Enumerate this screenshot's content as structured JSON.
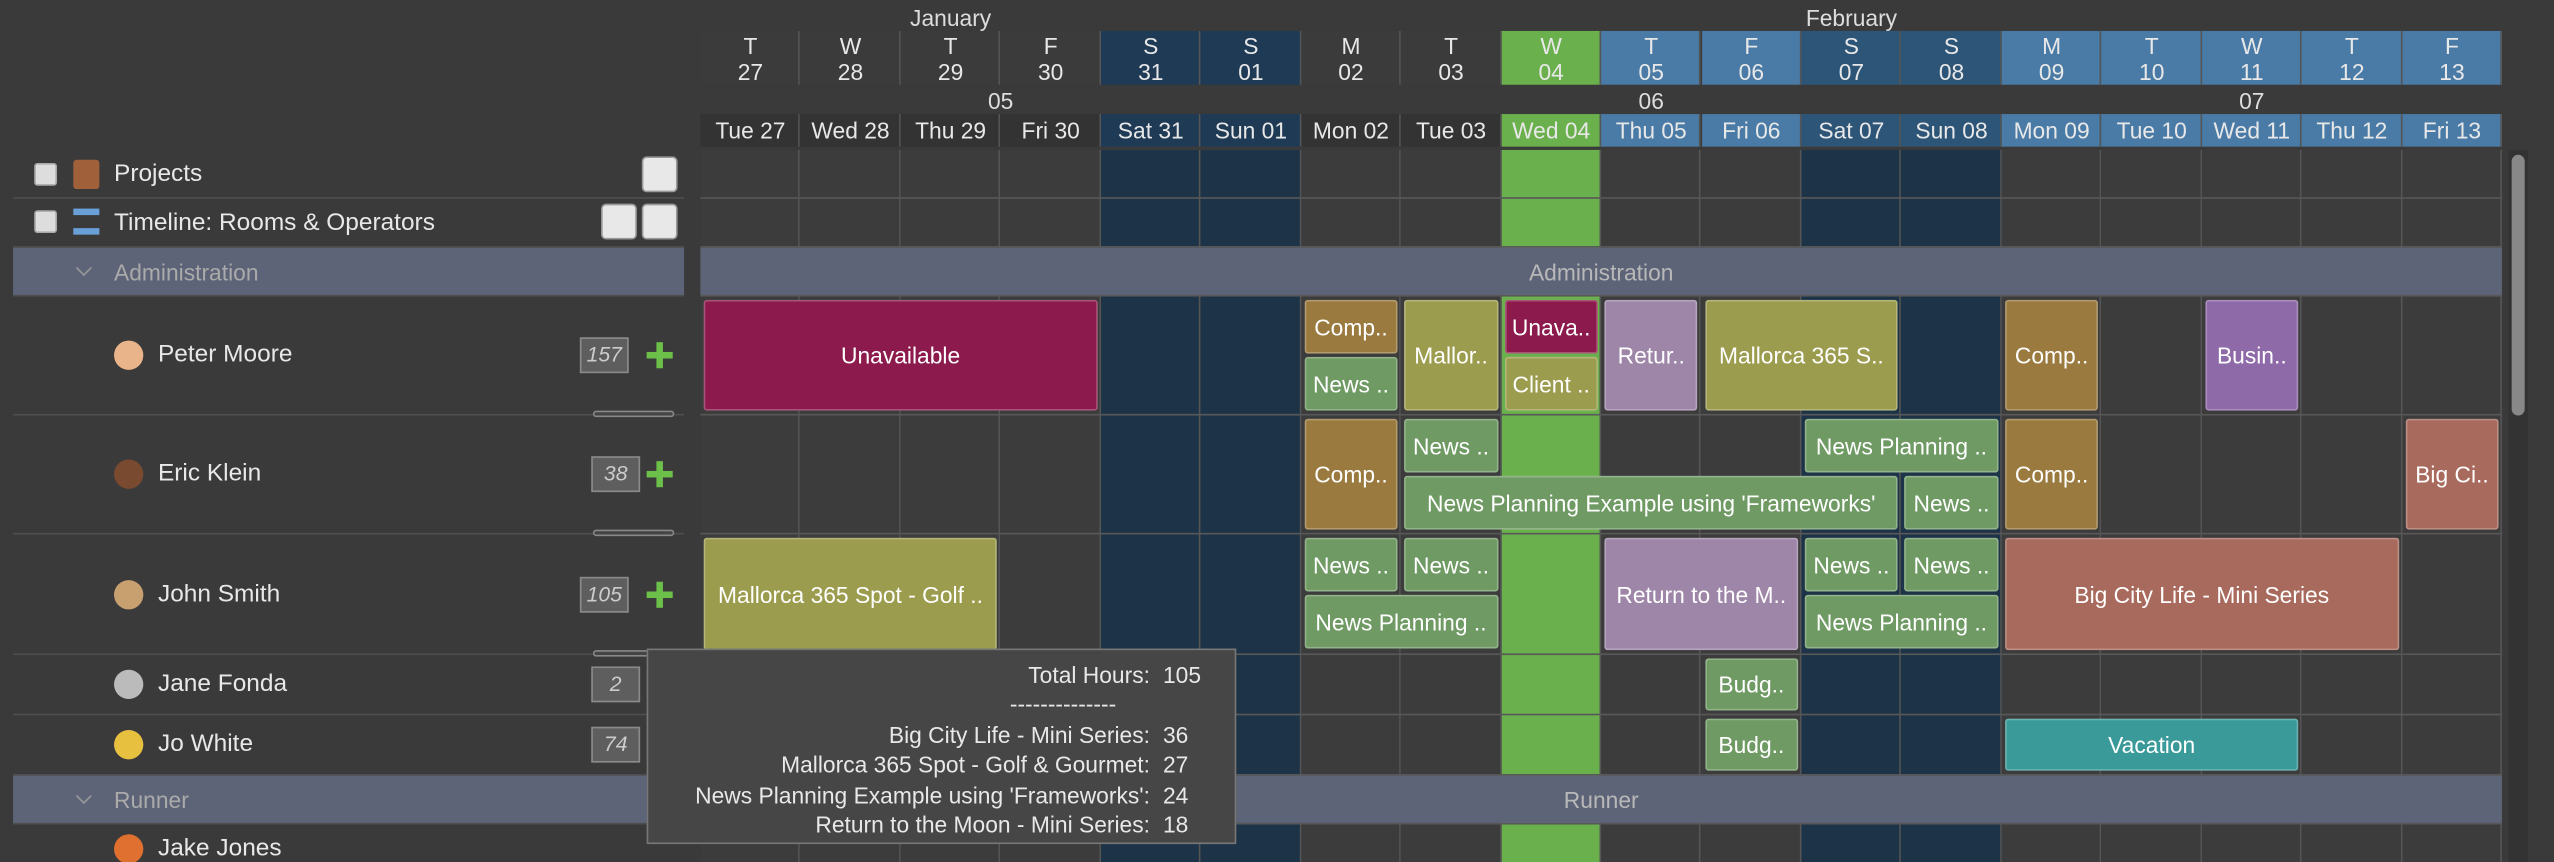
{
  "calendar": {
    "months": [
      "January",
      "February"
    ],
    "days": [
      {
        "letter": "T",
        "number": "27",
        "label": "Tue 27"
      },
      {
        "letter": "W",
        "number": "28",
        "label": "Wed 28"
      },
      {
        "letter": "T",
        "number": "29",
        "label": "Thu 29"
      },
      {
        "letter": "F",
        "number": "30",
        "label": "Fri 30"
      },
      {
        "letter": "S",
        "number": "31",
        "label": "Sat 31"
      },
      {
        "letter": "S",
        "number": "01",
        "label": "Sun 01"
      },
      {
        "letter": "M",
        "number": "02",
        "label": "Mon 02"
      },
      {
        "letter": "T",
        "number": "03",
        "label": "Tue 03"
      },
      {
        "letter": "W",
        "number": "04",
        "label": "Wed 04"
      },
      {
        "letter": "T",
        "number": "05",
        "label": "Thu 05"
      },
      {
        "letter": "F",
        "number": "06",
        "label": "Fri 06"
      },
      {
        "letter": "S",
        "number": "07",
        "label": "Sat 07"
      },
      {
        "letter": "S",
        "number": "08",
        "label": "Sun 08"
      },
      {
        "letter": "M",
        "number": "09",
        "label": "Mon 09"
      },
      {
        "letter": "T",
        "number": "10",
        "label": "Tue 10"
      },
      {
        "letter": "W",
        "number": "11",
        "label": "Wed 11"
      },
      {
        "letter": "T",
        "number": "12",
        "label": "Thu 12"
      },
      {
        "letter": "F",
        "number": "13",
        "label": "Fri 13"
      }
    ],
    "weeks": [
      "05",
      "06",
      "07"
    ]
  },
  "sidebar": {
    "projects": "Projects",
    "timeline": "Timeline: Rooms & Operators"
  },
  "groups": [
    {
      "name": "Administration"
    },
    {
      "name": "Runner"
    }
  ],
  "resources": [
    {
      "name": "Peter Moore",
      "hours": 157,
      "events": [
        "Unavailable",
        "Comp..",
        "News ..",
        "Mallor..",
        "Unava..",
        "Client ..",
        "Retur..",
        "Mallorca 365 S..",
        "Comp..",
        "Busin.."
      ]
    },
    {
      "name": "Eric Klein",
      "hours": 38,
      "events": [
        "Comp..",
        "News ..",
        "News Planning Example using 'Frameworks'",
        "News Planning ..",
        "News ..",
        "Comp..",
        "Big Ci.."
      ]
    },
    {
      "name": "John Smith",
      "hours": 105,
      "events": [
        "Mallorca 365 Spot - Golf ..",
        "News ..",
        "News ..",
        "News Planning ..",
        "Return to the M..",
        "News ..",
        "News ..",
        "News Planning ..",
        "Big City Life - Mini Series"
      ]
    },
    {
      "name": "Jane Fonda",
      "hours": 2,
      "events": [
        "Budg.."
      ]
    },
    {
      "name": "Jo White",
      "hours": 74,
      "events": [
        "Budg..",
        "Vacation"
      ]
    },
    {
      "name": "Jake Jones",
      "events": []
    }
  ],
  "tooltip": {
    "total_label": "Total Hours:",
    "total": 105,
    "separator": "--------------",
    "items": [
      {
        "label": "Big City Life - Mini Series:",
        "hours": 36
      },
      {
        "label": "Mallorca 365 Spot - Golf & Gourmet:",
        "hours": 27
      },
      {
        "label": "News Planning Example using 'Frameworks':",
        "hours": 24
      },
      {
        "label": "Return to the Moon - Mini Series:",
        "hours": 18
      }
    ]
  }
}
